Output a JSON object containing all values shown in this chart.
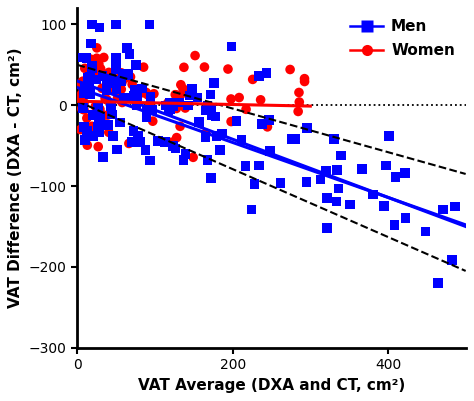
{
  "xlabel": "VAT Average (DXA and CT, cm²)",
  "ylabel": "VAT Difference (DXA - CT, cm²)",
  "xlim": [
    0,
    500
  ],
  "ylim": [
    -300,
    120
  ],
  "xticks": [
    0,
    200,
    400
  ],
  "yticks": [
    -300,
    -200,
    -100,
    0,
    100
  ],
  "men_color": "#0000FF",
  "women_color": "#FF0000",
  "bg_color": "#FFFFFF",
  "dotted_y": 0,
  "men_marker": "s",
  "women_marker": "o",
  "men_line1": [
    30,
    -0.36
  ],
  "men_line2": [
    22,
    -0.34
  ],
  "men_ci_upper": [
    50,
    -0.27
  ],
  "men_ci_lower": [
    5,
    -0.42
  ],
  "women_line": [
    5,
    -0.02
  ],
  "seed": 42,
  "n_men": 140,
  "n_women": 95
}
